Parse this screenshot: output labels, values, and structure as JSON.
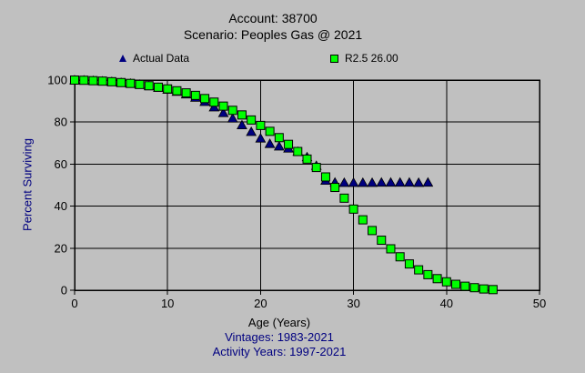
{
  "window": {
    "background": "#c0c0c0"
  },
  "chart_data": {
    "type": "scatter",
    "title": "Account: 38700",
    "subtitle": "Scenario: Peoples Gas @ 2021",
    "xlabel": "Age (Years)",
    "ylabel": "Percent Surviving",
    "footnotes": [
      "Vintages: 1983-2021",
      "Activity Years: 1997-2021"
    ],
    "xlim": [
      0,
      50
    ],
    "ylim": [
      0,
      100
    ],
    "x_ticks": [
      0,
      10,
      20,
      30,
      40,
      50
    ],
    "y_ticks": [
      0,
      20,
      40,
      60,
      80,
      100
    ],
    "grid": true,
    "legend_position": "top",
    "colors": {
      "background": "#c0c0c0",
      "axis": "#000000",
      "grid": "#000000",
      "actual": "#000080",
      "fitted": "#00ff00",
      "footnote_text": "#000080",
      "ylabel_text": "#000080"
    },
    "series": [
      {
        "name": "Actual Data",
        "marker": "triangle",
        "color": "#000080",
        "x": [
          0,
          1,
          2,
          3,
          4,
          5,
          6,
          7,
          8,
          9,
          10,
          11,
          12,
          13,
          14,
          15,
          16,
          17,
          18,
          19,
          20,
          21,
          22,
          23,
          24,
          25,
          26,
          27,
          28,
          29,
          30,
          31,
          32,
          33,
          34,
          35,
          36,
          37,
          38
        ],
        "y": [
          100,
          99.9,
          99.7,
          99.5,
          99.2,
          98.8,
          98.4,
          97.9,
          97.2,
          96.4,
          95.5,
          94.5,
          93.3,
          91.7,
          89.7,
          87.1,
          84.4,
          81.8,
          78.6,
          75.4,
          72.3,
          69.7,
          68.5,
          67.5,
          66.0,
          63.4,
          59.3,
          52.2,
          51.3,
          51.2,
          51.2,
          51.2,
          51.2,
          51.3,
          51.3,
          51.3,
          51.3,
          51.2,
          51.3
        ]
      },
      {
        "name": "R2.5 26.00",
        "marker": "square",
        "color": "#00ff00",
        "x": [
          0,
          1,
          2,
          3,
          4,
          5,
          6,
          7,
          8,
          9,
          10,
          11,
          12,
          13,
          14,
          15,
          16,
          17,
          18,
          19,
          20,
          21,
          22,
          23,
          24,
          25,
          26,
          27,
          28,
          29,
          30,
          31,
          32,
          33,
          34,
          35,
          36,
          37,
          38,
          39,
          40,
          41,
          42,
          43,
          44,
          45
        ],
        "y": [
          100,
          99.9,
          99.7,
          99.5,
          99.2,
          98.8,
          98.4,
          97.9,
          97.3,
          96.6,
          95.8,
          94.9,
          93.9,
          92.7,
          91.2,
          89.5,
          87.6,
          85.6,
          83.4,
          81.0,
          78.4,
          75.6,
          72.6,
          69.4,
          66.0,
          62.4,
          58.4,
          53.9,
          48.9,
          43.8,
          38.6,
          33.5,
          28.4,
          23.8,
          19.7,
          15.9,
          12.5,
          9.7,
          7.4,
          5.5,
          4.0,
          2.8,
          1.9,
          1.2,
          0.6,
          0.3
        ]
      }
    ]
  }
}
